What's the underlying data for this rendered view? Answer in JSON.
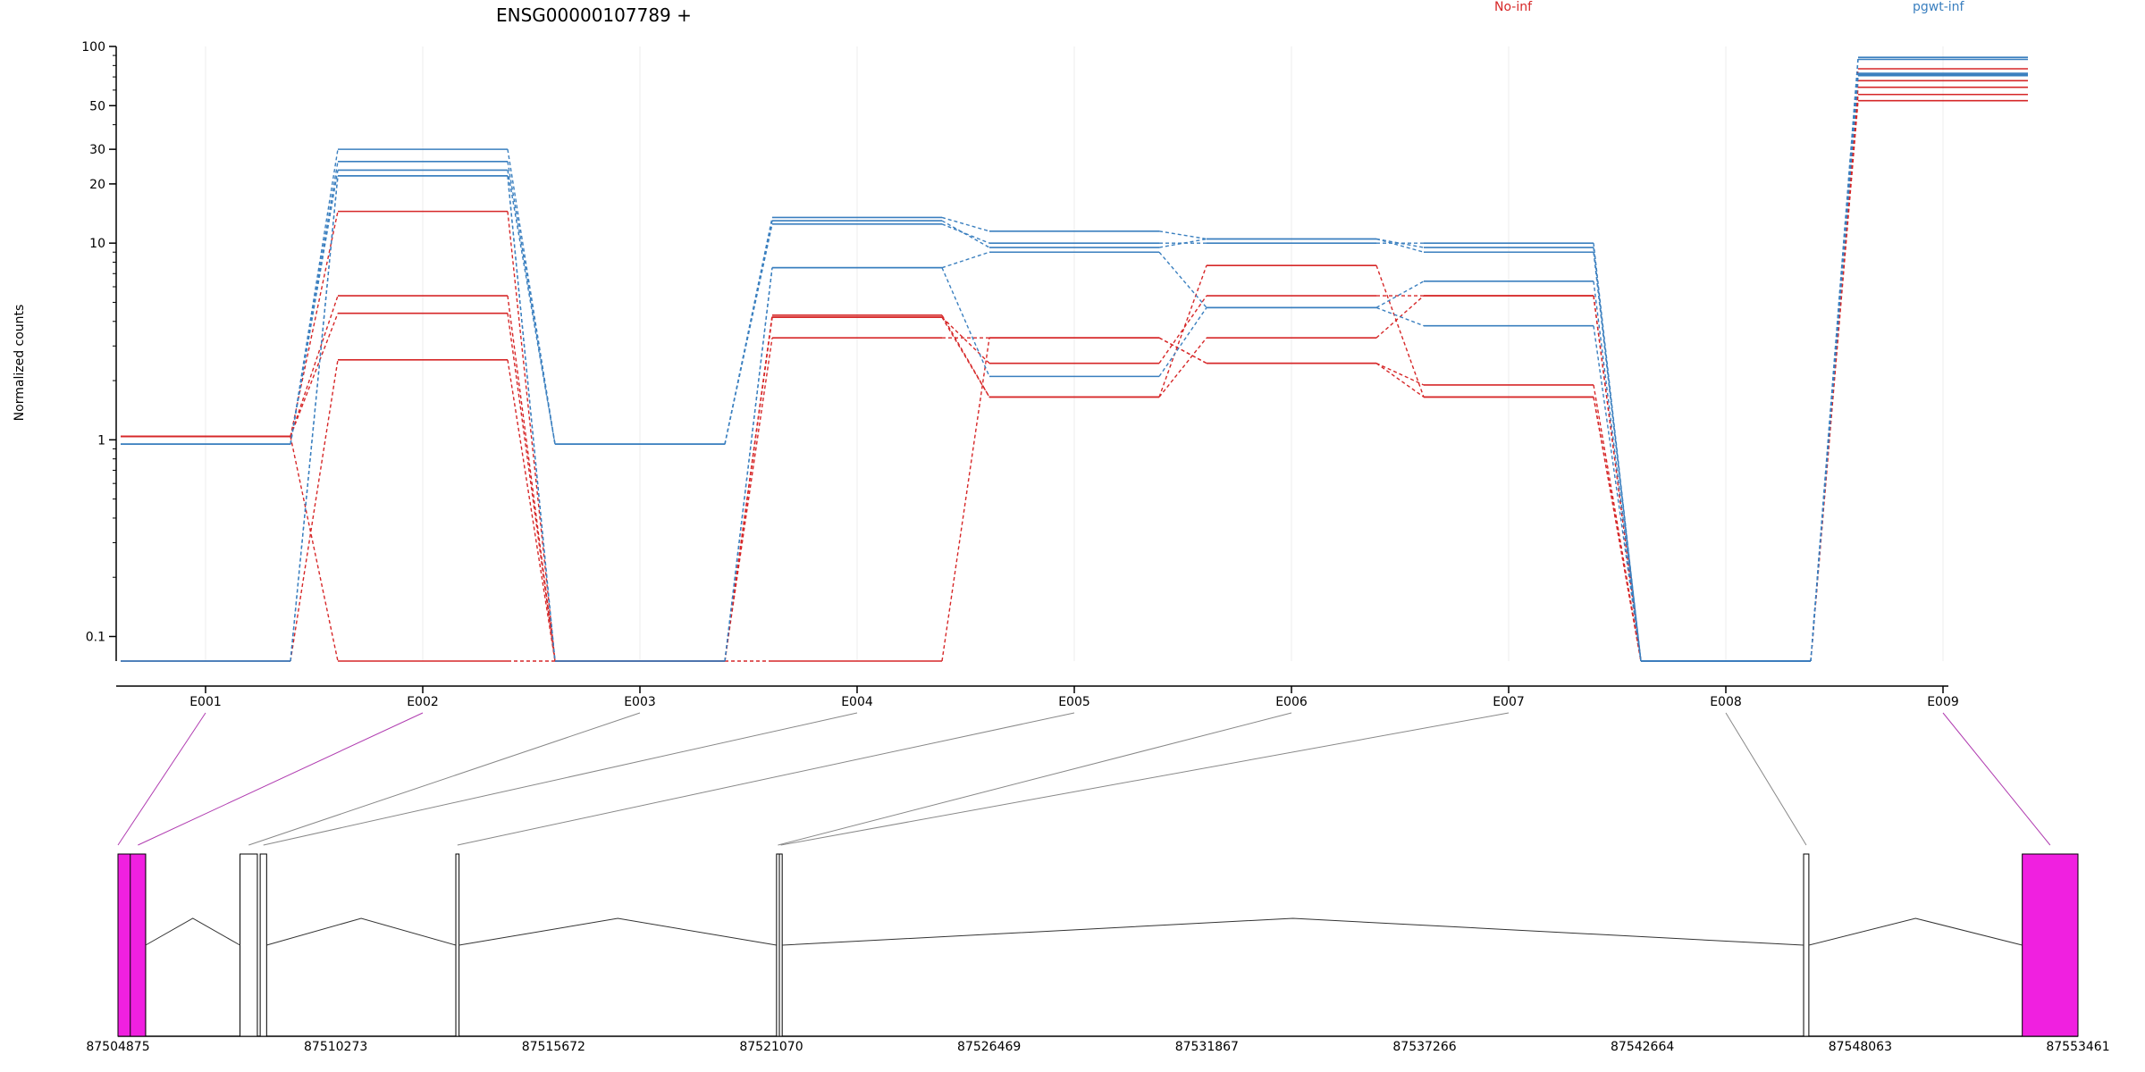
{
  "chart_data": {
    "type": "line",
    "title": "ENSG00000107789 +",
    "ylabel": "Normalized counts",
    "xlabel": "",
    "yscale": "log",
    "ylim": [
      0.075,
      100
    ],
    "yticks": [
      "100",
      "50",
      "30",
      "20",
      "10",
      "1",
      "0.1"
    ],
    "categories": [
      "E001",
      "E002",
      "E003",
      "E004",
      "E005",
      "E006",
      "E007",
      "E008",
      "E009"
    ],
    "grid": true,
    "legend": [
      {
        "label": "No-inf",
        "color": "#d62728"
      },
      {
        "label": "pgwt-inf",
        "color": "#3a7fbf"
      }
    ],
    "groups": [
      {
        "name": "No-inf",
        "color": "#d62728",
        "samples": [
          {
            "values": [
              1.04,
              0.075,
              0.075,
              0.075,
              3.3,
              2.45,
              1.9,
              0.075,
              62
            ]
          },
          {
            "values": [
              1.04,
              14.5,
              0.075,
              4.2,
              2.45,
              5.4,
              5.4,
              0.075,
              53
            ]
          },
          {
            "values": [
              1.04,
              5.4,
              0.075,
              4.2,
              1.65,
              3.3,
              5.4,
              0.075,
              67
            ]
          },
          {
            "values": [
              1.04,
              4.4,
              0.075,
              3.3,
              3.3,
              2.45,
              1.65,
              0.075,
              77
            ]
          },
          {
            "values": [
              0.075,
              2.55,
              0.075,
              4.3,
              1.65,
              7.7,
              1.65,
              0.075,
              57
            ]
          }
        ]
      },
      {
        "name": "pgwt-inf",
        "color": "#3a7fbf",
        "samples": [
          {
            "values": [
              0.95,
              30,
              0.95,
              13.5,
              11.5,
              10.5,
              9.5,
              0.075,
              88
            ]
          },
          {
            "values": [
              0.95,
              26,
              0.95,
              13,
              9.5,
              10.5,
              9,
              0.075,
              72
            ]
          },
          {
            "values": [
              0.95,
              23.5,
              0.95,
              12.5,
              10,
              10,
              10,
              0.075,
              73
            ]
          },
          {
            "values": [
              0.075,
              22,
              0.075,
              7.5,
              2.1,
              4.7,
              3.8,
              0.075,
              71
            ]
          },
          {
            "values": [
              0.075,
              22,
              0.075,
              7.5,
              9,
              4.7,
              6.4,
              0.075,
              86
            ]
          }
        ]
      }
    ],
    "gene_model": {
      "genomic_ticks": [
        "87504875",
        "87510273",
        "87515672",
        "87521070",
        "87526469",
        "87531867",
        "87537266",
        "87542664",
        "87548063",
        "87553461"
      ],
      "range": [
        87504875,
        87553461
      ],
      "exons": [
        {
          "id": "E001",
          "start": 87504875,
          "end": 87505560,
          "highlight": true
        },
        {
          "id": "E002",
          "start": 87505180,
          "end": 87505560,
          "highlight": true
        },
        {
          "id": "E003",
          "start": 87507900,
          "end": 87508330,
          "highlight": false
        },
        {
          "id": "E004",
          "start": 87508400,
          "end": 87508560,
          "highlight": false
        },
        {
          "id": "E005",
          "start": 87513250,
          "end": 87513330,
          "highlight": false
        },
        {
          "id": "E006",
          "start": 87521200,
          "end": 87521270,
          "highlight": false
        },
        {
          "id": "E007",
          "start": 87521270,
          "end": 87521340,
          "highlight": false
        },
        {
          "id": "E008",
          "start": 87546660,
          "end": 87546790,
          "highlight": false
        },
        {
          "id": "E009",
          "start": 87552080,
          "end": 87553461,
          "highlight": true
        }
      ],
      "highlight_color": "#f020e0"
    }
  }
}
